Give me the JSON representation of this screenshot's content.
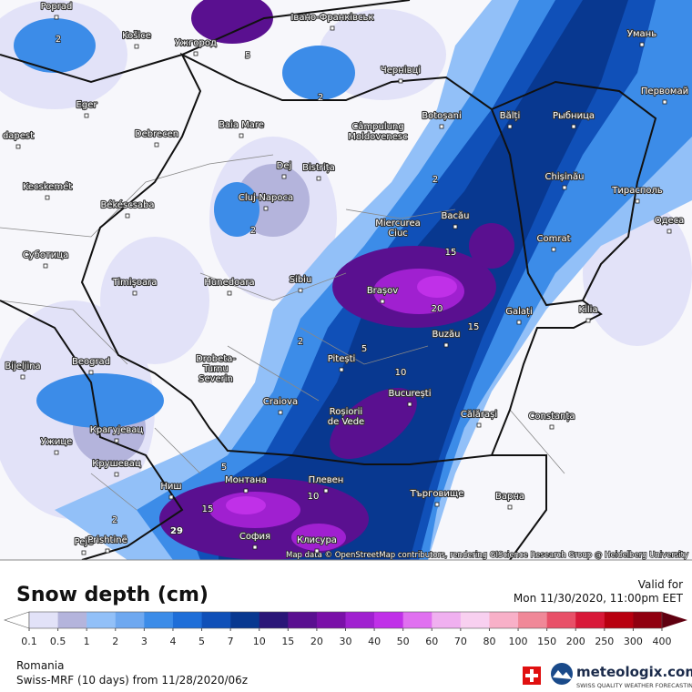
{
  "cities": [
    [
      "Poprad"
    ],
    [
      "Košice"
    ],
    [
      "Ужгород"
    ],
    [
      "Івано-Франківськ"
    ],
    [
      "Умань"
    ],
    [
      "Чернівці"
    ],
    [
      "Первомай"
    ],
    [
      "Baia Mare"
    ],
    [
      "Botoșani"
    ],
    [
      "Bălți"
    ],
    [
      "Рыбница"
    ],
    [
      "Câmpulung",
      "Moldovenesc"
    ],
    [
      "Eger"
    ],
    [
      "dapest"
    ],
    [
      "Debrecen"
    ],
    [
      "Dej"
    ],
    [
      "Bistrița"
    ],
    [
      "Chișinău"
    ],
    [
      "Kecskemét"
    ],
    [
      "Cluj-Napoca"
    ],
    [
      "Тирасполь"
    ],
    [
      "Békéscsaba"
    ],
    [
      "Bacău"
    ],
    [
      "Miercurea",
      "Ciuc"
    ],
    [
      "Одеса"
    ],
    [
      "Суботица"
    ],
    [
      "Comrat"
    ],
    [
      "Timișoara"
    ],
    [
      "Hunedoara"
    ],
    [
      "Sibiu"
    ],
    [
      "Brașov"
    ],
    [
      "Galați"
    ],
    [
      "Kilia"
    ],
    [
      "Buzău"
    ],
    [
      "Pitești"
    ],
    [
      "Beograd"
    ],
    [
      "Bijeljina"
    ],
    [
      "Drobeta-",
      "Turnu",
      "Severin"
    ],
    [
      "București"
    ],
    [
      "Craiova"
    ],
    [
      "Roșiorii",
      "de Vede"
    ],
    [
      "Călărași"
    ],
    [
      "Constanța"
    ],
    [
      "Крагујевац"
    ],
    [
      "Ужице"
    ],
    [
      "Крушевац"
    ],
    [
      "Монтана"
    ],
    [
      "Плевен"
    ],
    [
      "Търговище"
    ],
    [
      "Ниш"
    ],
    [
      "Варна"
    ],
    [
      "Pejë"
    ],
    [
      "Prishtinë"
    ],
    [
      "София"
    ],
    [
      "Клисура"
    ]
  ],
  "contour_labels": [
    2,
    2,
    5,
    2,
    2,
    2,
    5,
    15,
    20,
    15,
    10,
    5,
    2,
    15,
    10,
    29
  ],
  "attribution": "Map data © OpenStreetMap contributors, rendering GIScience Research Group @ Heidelberg University",
  "legend": {
    "title": "Snow depth (cm)",
    "ticks": [
      0.1,
      0.5,
      1,
      2,
      3,
      4,
      5,
      7,
      10,
      15,
      20,
      30,
      40,
      50,
      60,
      70,
      80,
      100,
      150,
      200,
      250,
      300,
      400
    ],
    "colors": [
      "#ffffff",
      "#e2e2f8",
      "#b4b4dc",
      "#92c0f8",
      "#6ea8f0",
      "#3c8ce8",
      "#1e6ed8",
      "#1050b8",
      "#083890",
      "#2a1678",
      "#5a1090",
      "#7a10a8",
      "#a020d0",
      "#c030e8",
      "#e070f0",
      "#f0b0f0",
      "#f8d0f0",
      "#f8b0c8",
      "#f08898",
      "#e85068",
      "#d81838",
      "#b80010",
      "#900010",
      "#600010"
    ]
  },
  "valid": {
    "label": "Valid for",
    "time": "Mon 11/30/2020, 11:00pm EET"
  },
  "region": "Romania",
  "model": "Swiss-MRF (10 days)  from  11/28/2020/06z",
  "brand": {
    "name": "meteologix.com",
    "tagline": "SWISS QUALITY WEATHER FORECASTING"
  }
}
